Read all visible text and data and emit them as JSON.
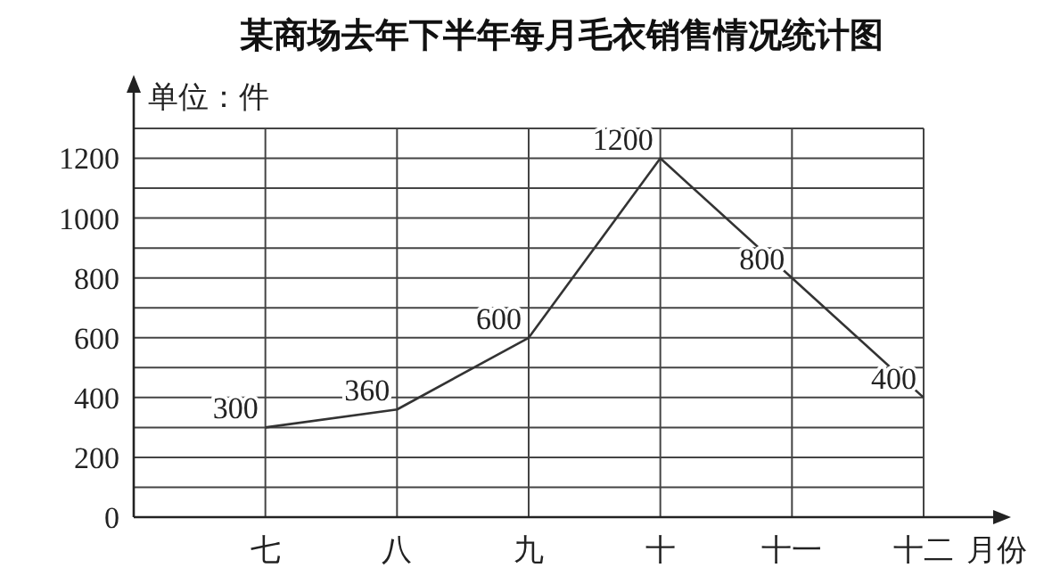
{
  "chart_data": {
    "type": "line",
    "title": "某商场去年下半年每月毛衣销售情况统计图",
    "xlabel": "月份",
    "ylabel": "单位：件",
    "categories": [
      "七",
      "八",
      "九",
      "十",
      "十一",
      "十二"
    ],
    "series": [
      {
        "color": "#333333",
        "values": [
          300,
          360,
          600,
          1200,
          800,
          400
        ]
      }
    ],
    "ylim": [
      0,
      1300
    ],
    "yticks": [
      0,
      {
        "value": 100,
        "label": null
      },
      200,
      {
        "value": 300,
        "label": null
      },
      400,
      {
        "value": 500,
        "label": null
      },
      600,
      {
        "value": 700,
        "label": null
      },
      800,
      {
        "value": 900,
        "label": null
      },
      1000,
      {
        "value": 1100,
        "label": null
      },
      1200,
      {
        "value": 1300,
        "label": null
      }
    ],
    "grid": true,
    "data_labels": true,
    "marker": "none",
    "line_style": "solid"
  }
}
